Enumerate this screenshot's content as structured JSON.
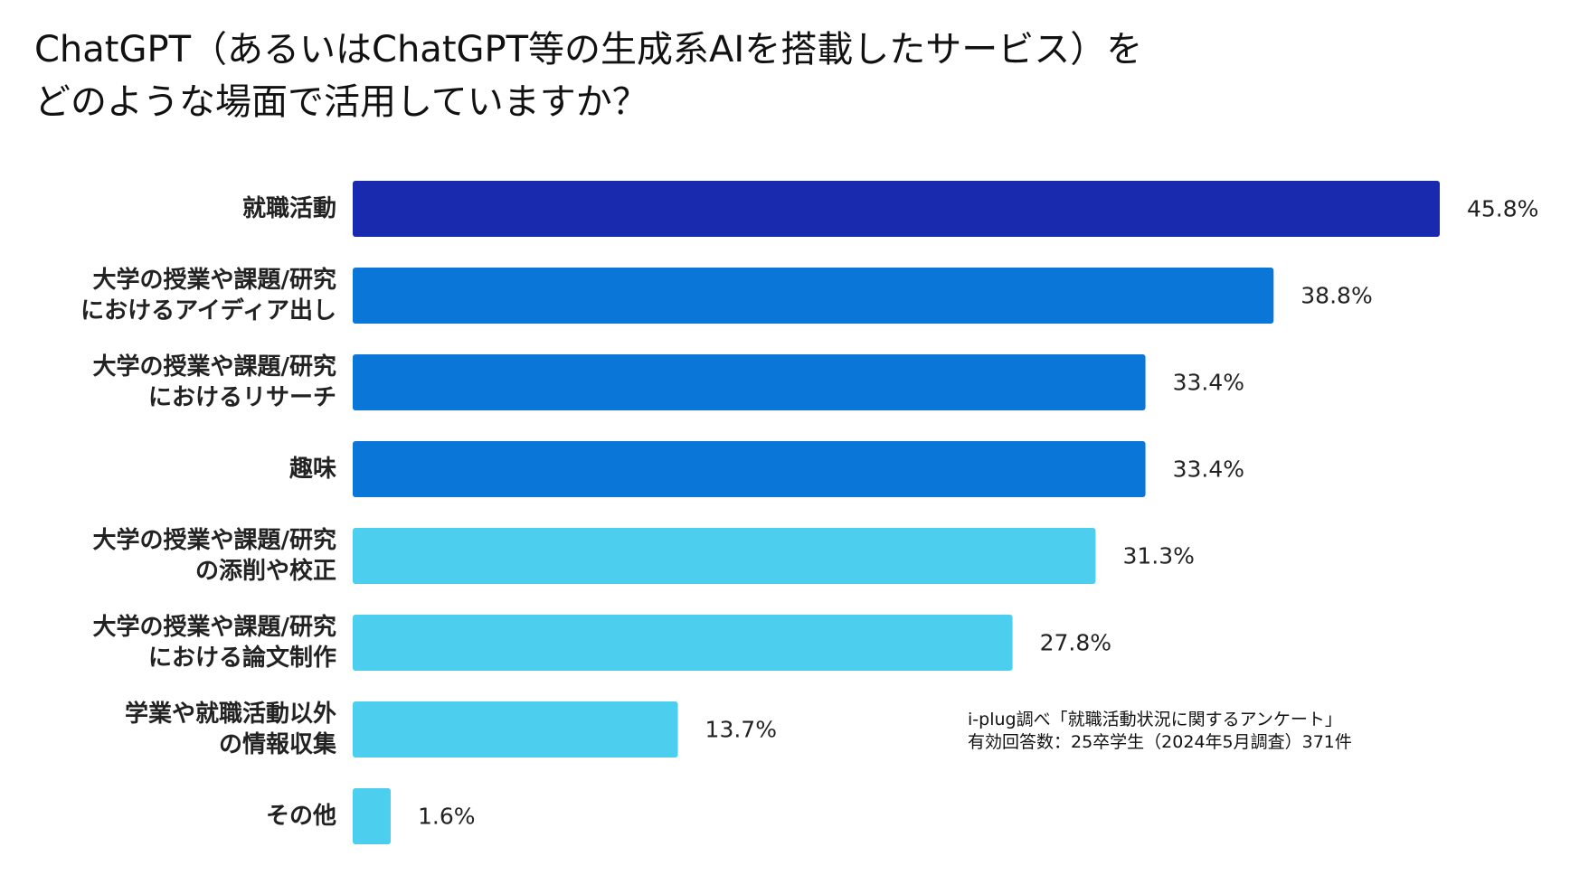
{
  "chart_data": {
    "type": "bar",
    "orientation": "horizontal",
    "title_lines": [
      "ChatGPT（あるいはChatGPT等の生成系AIを搭載したサービス）を",
      "どのような場面で活用していますか？"
    ],
    "categories": [
      [
        "就職活動"
      ],
      [
        "大学の授業や課題/研究",
        "におけるアイディア出し"
      ],
      [
        "大学の授業や課題/研究",
        "におけるリサーチ"
      ],
      [
        "趣味"
      ],
      [
        "大学の授業や課題/研究",
        "の添削や校正"
      ],
      [
        "大学の授業や課題/研究",
        "における論文制作"
      ],
      [
        "学業や就職活動以外",
        "の情報収集"
      ],
      [
        "その他"
      ]
    ],
    "values": [
      45.8,
      38.8,
      33.4,
      33.4,
      31.3,
      27.8,
      13.7,
      1.6
    ],
    "value_labels": [
      "45.8%",
      "38.8%",
      "33.4%",
      "33.4%",
      "31.3%",
      "27.8%",
      "13.7%",
      "1.6%"
    ],
    "colors": [
      "#1a2aaf",
      "#0a76d8",
      "#0a76d8",
      "#0a76d8",
      "#4ccfee",
      "#4ccfee",
      "#4ccfee",
      "#4ccfee"
    ],
    "xlim": [
      0,
      45.8
    ],
    "grid": false,
    "legend": null
  },
  "source_note": {
    "line1": "i-plug調べ「就職活動状況に関するアンケート」",
    "line2": "有効回答数：25卒学生（2024年5月調査）371件"
  }
}
